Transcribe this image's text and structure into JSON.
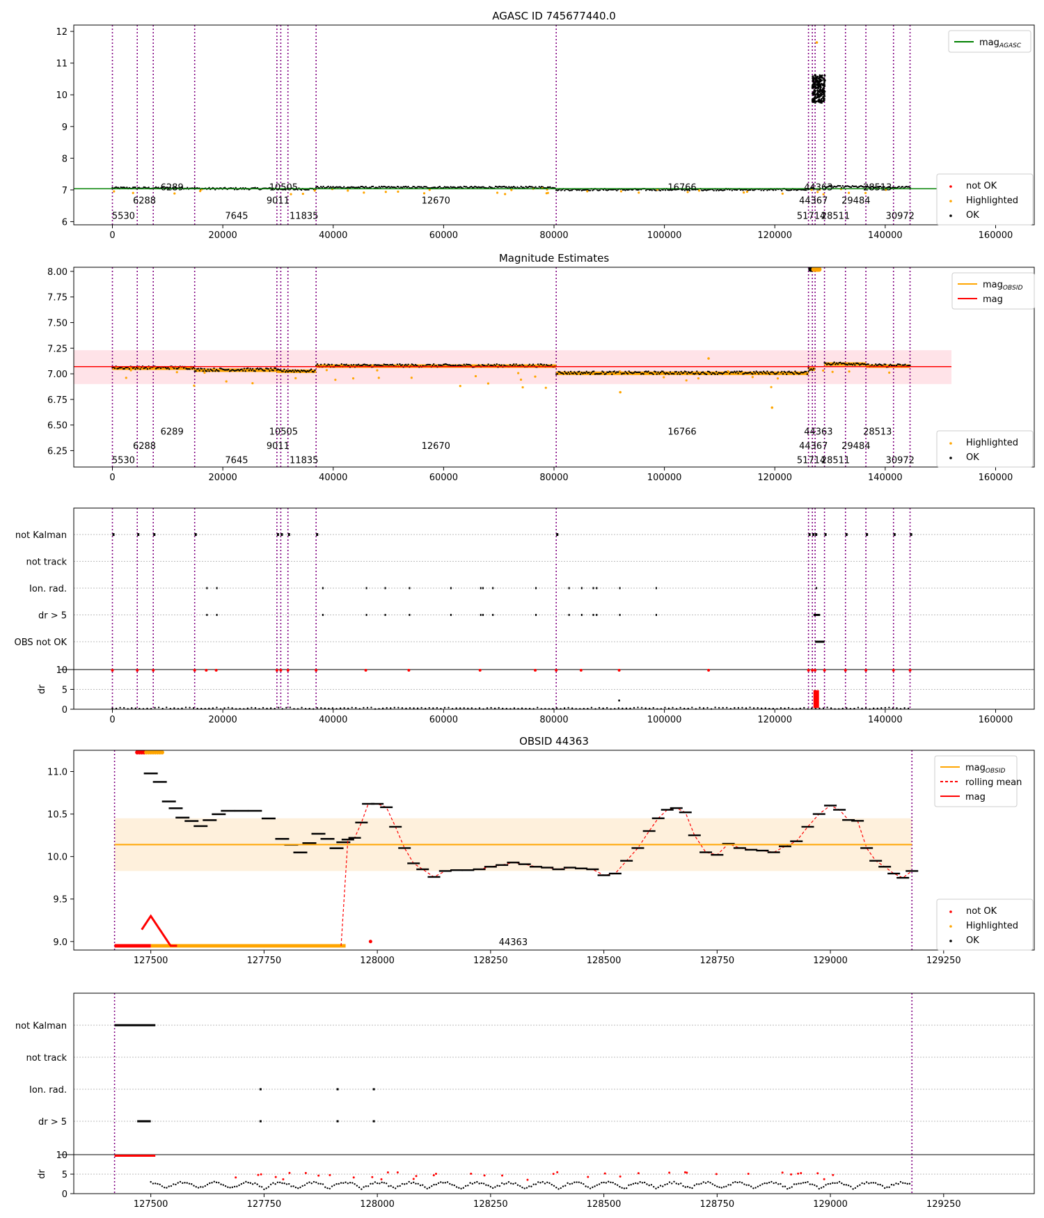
{
  "chart_data": [
    {
      "id": "p1",
      "type": "scatter",
      "title": "AGASC ID 745677440.0",
      "xlim": [
        -7000,
        167000
      ],
      "ylim": [
        5.9,
        12.2
      ],
      "xticks": [
        0,
        20000,
        40000,
        60000,
        80000,
        100000,
        120000,
        140000,
        160000
      ],
      "yticks": [
        6,
        7,
        8,
        9,
        10,
        11,
        12
      ],
      "vlines": [
        0,
        4500,
        7400,
        14900,
        29800,
        30500,
        31800,
        36900,
        80400,
        126100,
        126800,
        127300,
        129000,
        132800,
        136500,
        141500,
        144500
      ],
      "obsid_labels": [
        {
          "x": 2000,
          "y": 6.2,
          "text": "5530"
        },
        {
          "x": 5800,
          "y": 6.68,
          "text": "6288"
        },
        {
          "x": 10800,
          "y": 7.1,
          "text": "6289"
        },
        {
          "x": 22500,
          "y": 6.2,
          "text": "7645"
        },
        {
          "x": 30000,
          "y": 6.68,
          "text": "9011"
        },
        {
          "x": 31000,
          "y": 7.1,
          "text": "10505"
        },
        {
          "x": 34700,
          "y": 6.2,
          "text": "11835"
        },
        {
          "x": 58600,
          "y": 6.68,
          "text": "12670"
        },
        {
          "x": 103200,
          "y": 7.1,
          "text": "16766"
        },
        {
          "x": 126600,
          "y": 6.2,
          "text": "51714"
        },
        {
          "x": 127000,
          "y": 6.68,
          "text": "44367"
        },
        {
          "x": 127900,
          "y": 7.1,
          "text": "44363"
        },
        {
          "x": 131000,
          "y": 6.2,
          "text": "28511"
        },
        {
          "x": 134700,
          "y": 6.68,
          "text": "29484"
        },
        {
          "x": 138600,
          "y": 7.1,
          "text": "28513"
        },
        {
          "x": 142700,
          "y": 6.2,
          "text": "30972"
        }
      ],
      "lines": [
        {
          "name": "mag_AGASC",
          "y": 7.04,
          "color": "#008000"
        }
      ],
      "legend_lines": [
        {
          "name": "mag",
          "sub": "AGASC",
          "color": "#008000"
        }
      ],
      "legend_points": [
        {
          "name": "not OK",
          "color": "#ff0000"
        },
        {
          "name": "Highlighted",
          "color": "#ffa500"
        },
        {
          "name": "OK",
          "color": "#000000"
        }
      ]
    },
    {
      "id": "p2",
      "type": "scatter",
      "title": "Magnitude Estimates",
      "xlim": [
        -7000,
        167000
      ],
      "ylim": [
        6.09,
        8.04
      ],
      "xticks": [
        0,
        20000,
        40000,
        60000,
        80000,
        100000,
        120000,
        140000,
        160000
      ],
      "yticks": [
        6.25,
        6.5,
        6.75,
        7.0,
        7.25,
        7.5,
        7.75,
        8.0
      ],
      "ytick_labels": [
        "6.25",
        "6.50",
        "6.75",
        "7.00",
        "7.25",
        "7.50",
        "7.75",
        "8.00"
      ],
      "vlines": [
        0,
        4500,
        7400,
        14900,
        29800,
        30500,
        31800,
        36900,
        80400,
        126100,
        126800,
        127300,
        129000,
        132800,
        136500,
        141500,
        144500
      ],
      "obsid_labels": [
        {
          "x": 2000,
          "y": 6.16,
          "text": "5530"
        },
        {
          "x": 5800,
          "y": 6.3,
          "text": "6288"
        },
        {
          "x": 10800,
          "y": 6.44,
          "text": "6289"
        },
        {
          "x": 22500,
          "y": 6.16,
          "text": "7645"
        },
        {
          "x": 30000,
          "y": 6.3,
          "text": "9011"
        },
        {
          "x": 31000,
          "y": 6.44,
          "text": "10505"
        },
        {
          "x": 34700,
          "y": 6.16,
          "text": "11835"
        },
        {
          "x": 58600,
          "y": 6.3,
          "text": "12670"
        },
        {
          "x": 103200,
          "y": 6.44,
          "text": "16766"
        },
        {
          "x": 126600,
          "y": 6.16,
          "text": "51714"
        },
        {
          "x": 127000,
          "y": 6.3,
          "text": "44367"
        },
        {
          "x": 127900,
          "y": 6.44,
          "text": "44363"
        },
        {
          "x": 131000,
          "y": 6.16,
          "text": "28511"
        },
        {
          "x": 134700,
          "y": 6.3,
          "text": "29484"
        },
        {
          "x": 138600,
          "y": 6.44,
          "text": "28513"
        },
        {
          "x": 142700,
          "y": 6.16,
          "text": "30972"
        }
      ],
      "band": {
        "x0": -7000,
        "x1": 152000,
        "y0": 6.9,
        "y1": 7.23,
        "color": "#ffc0cb"
      },
      "lines": [
        {
          "name": "mag",
          "y": 7.07,
          "x0": -7000,
          "x1": 152000,
          "color": "#ff0000"
        }
      ],
      "legend_lines": [
        {
          "name": "mag",
          "sub": "OBSID",
          "color": "#ffa500"
        },
        {
          "name": "mag",
          "sub": "",
          "color": "#ff0000"
        }
      ],
      "legend_points": [
        {
          "name": "Highlighted",
          "color": "#ffa500"
        },
        {
          "name": "OK",
          "color": "#000000"
        }
      ]
    },
    {
      "id": "p3",
      "type": "flags",
      "xlim": [
        -7000,
        167000
      ],
      "xticks": [
        0,
        20000,
        40000,
        60000,
        80000,
        100000,
        120000,
        140000,
        160000
      ],
      "vlines": [
        0,
        4500,
        7400,
        14900,
        29800,
        30500,
        31800,
        36900,
        80400,
        126100,
        126800,
        127300,
        129000,
        132800,
        136500,
        141500,
        144500
      ],
      "flag_labels": [
        "not Kalman",
        "not track",
        "Ion. rad.",
        "dr > 5",
        "OBS not OK"
      ],
      "dr_ylim": [
        0,
        10
      ],
      "dr_yticks": [
        0,
        5,
        10
      ],
      "dr_label": "dr"
    },
    {
      "id": "p4",
      "type": "line",
      "title": "OBSID 44363",
      "xlim": [
        127330,
        129450
      ],
      "ylim": [
        8.9,
        11.25
      ],
      "xticks": [
        127500,
        127750,
        128000,
        128250,
        128500,
        128750,
        129000,
        129250
      ],
      "yticks": [
        9.0,
        9.5,
        10.0,
        10.5,
        11.0
      ],
      "ytick_labels": [
        "9.0",
        "9.5",
        "10.0",
        "10.5",
        "11.0"
      ],
      "vlines": [
        127420,
        129180
      ],
      "obsid_labels": [
        {
          "x": 128300,
          "y": 9.0,
          "text": "44363"
        }
      ],
      "band": {
        "x0": 127420,
        "x1": 129180,
        "y0": 9.83,
        "y1": 10.45,
        "color": "#fdebd0"
      },
      "lines": [
        {
          "name": "mag_OBSID",
          "y": 10.14,
          "x0": 127420,
          "x1": 129180,
          "color": "#ffa500"
        }
      ],
      "rolling_mean": {
        "x": [
          127920,
          127935,
          127950,
          127965,
          127980,
          128000,
          128020,
          128040,
          128060,
          128080,
          128100,
          128125,
          128150,
          128175,
          128200,
          128225,
          128250,
          128275,
          128300,
          128325,
          128350,
          128375,
          128400,
          128425,
          128450,
          128475,
          128500,
          128525,
          128550,
          128575,
          128600,
          128620,
          128640,
          128660,
          128680,
          128700,
          128725,
          128750,
          128775,
          128800,
          128825,
          128850,
          128875,
          128900,
          128925,
          128950,
          128975,
          129000,
          129020,
          129040,
          129060,
          129080,
          129100,
          129120,
          129140,
          129160,
          129180
        ],
        "values": [
          8.95,
          10.2,
          10.22,
          10.4,
          10.62,
          10.62,
          10.58,
          10.35,
          10.1,
          9.92,
          9.85,
          9.76,
          9.83,
          9.84,
          9.84,
          9.85,
          9.88,
          9.9,
          9.93,
          9.91,
          9.88,
          9.87,
          9.85,
          9.87,
          9.86,
          9.85,
          9.78,
          9.8,
          9.95,
          10.1,
          10.3,
          10.45,
          10.55,
          10.57,
          10.52,
          10.25,
          10.05,
          10.02,
          10.15,
          10.1,
          10.08,
          10.07,
          10.05,
          10.12,
          10.18,
          10.35,
          10.5,
          10.6,
          10.55,
          10.43,
          10.42,
          10.1,
          9.95,
          9.88,
          9.8,
          9.75,
          9.83
        ]
      },
      "legend_lines": [
        {
          "name": "mag",
          "sub": "OBSID",
          "color": "#ffa500"
        },
        {
          "name": "rolling mean",
          "sub": "",
          "color": "#ff0000",
          "dash": true
        },
        {
          "name": "mag",
          "sub": "",
          "color": "#ff0000"
        }
      ],
      "legend_points": [
        {
          "name": "not OK",
          "color": "#ff0000"
        },
        {
          "name": "Highlighted",
          "color": "#ffa500"
        },
        {
          "name": "OK",
          "color": "#000000"
        }
      ]
    },
    {
      "id": "p5",
      "type": "flags",
      "xlim": [
        127330,
        129450
      ],
      "xticks": [
        127500,
        127750,
        128000,
        128250,
        128500,
        128750,
        129000,
        129250
      ],
      "vlines": [
        127420,
        129180
      ],
      "flag_labels": [
        "not Kalman",
        "not track",
        "Ion. rad.",
        "dr > 5"
      ],
      "dr_ylim": [
        0,
        10
      ],
      "dr_yticks": [
        0,
        5,
        10
      ],
      "dr_label": "dr"
    }
  ]
}
